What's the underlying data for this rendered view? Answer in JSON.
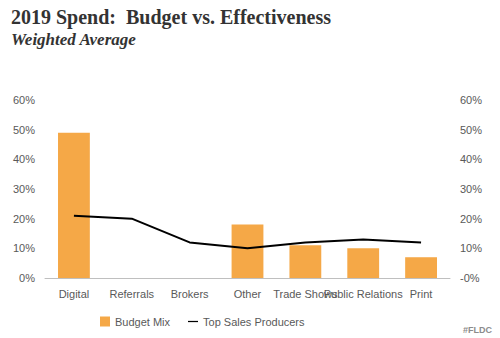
{
  "chart_data": {
    "type": "bar",
    "title": "2019 Spend:  Budget vs. Effectiveness",
    "subtitle": "Weighted Average",
    "categories": [
      "Digital",
      "Referrals",
      "Brokers",
      "Other",
      "Trade Shows",
      "Public Relations",
      "Print"
    ],
    "series": [
      {
        "name": "Budget Mix",
        "type": "bar",
        "color": "#f5a847",
        "values": [
          49,
          0,
          0,
          18,
          11,
          10,
          7
        ]
      },
      {
        "name": "Top Sales Producers",
        "type": "line",
        "color": "#000000",
        "axis": "y2",
        "values": [
          21,
          20,
          12,
          10,
          12,
          13,
          12
        ]
      }
    ],
    "ylim": [
      0,
      60
    ],
    "yticks": [
      {
        "value": 0,
        "label": "0%"
      },
      {
        "value": 10,
        "label": "10%"
      },
      {
        "value": 20,
        "label": "20%"
      },
      {
        "value": 30,
        "label": "30%"
      },
      {
        "value": 40,
        "label": "40%"
      },
      {
        "value": 50,
        "label": "50%"
      },
      {
        "value": 60,
        "label": "60%"
      }
    ],
    "y2lim": [
      0,
      60
    ],
    "y2ticks": [
      {
        "value": 0,
        "label": "-0%"
      },
      {
        "value": 10,
        "label": "10%"
      },
      {
        "value": 20,
        "label": "20%"
      },
      {
        "value": 30,
        "label": "30%"
      },
      {
        "value": 40,
        "label": "40%"
      },
      {
        "value": 50,
        "label": "50%"
      },
      {
        "value": 60,
        "label": "60%"
      }
    ],
    "grid": false,
    "legend": "bottom",
    "annotations": [
      "#FLDC"
    ]
  }
}
